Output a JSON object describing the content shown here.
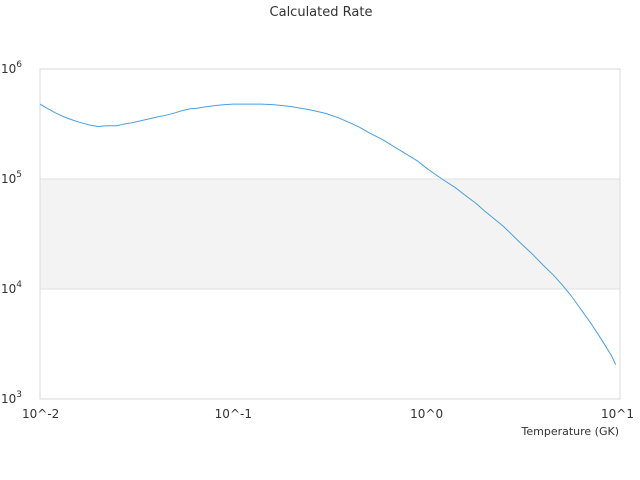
{
  "chart_data": {
    "type": "line",
    "title": "Calculated Rate",
    "xlabel": "Temperature (GK)",
    "ylabel": "",
    "xscale": "log",
    "yscale": "log",
    "xlim": [
      0.01,
      10
    ],
    "ylim": [
      1000,
      1000000
    ],
    "x_ticks": [
      {
        "value": 0.01,
        "base": "10^",
        "exp": "-2"
      },
      {
        "value": 0.1,
        "base": "10^",
        "exp": "-1"
      },
      {
        "value": 1,
        "base": "10^",
        "exp": "0"
      },
      {
        "value": 10,
        "base": "10^",
        "exp": "1"
      }
    ],
    "y_ticks": [
      {
        "value": 1000,
        "base": "10^",
        "exp": "3"
      },
      {
        "value": 10000,
        "base": "10^",
        "exp": "4"
      },
      {
        "value": 100000,
        "base": "10^",
        "exp": "5"
      },
      {
        "value": 1000000,
        "base": "10^",
        "exp": "6"
      }
    ],
    "bands": [
      {
        "from": 10000,
        "to": 100000,
        "color": "#f3f3f3"
      }
    ],
    "grid": true,
    "legend": "none",
    "series": [
      {
        "color": "#4a9fe0",
        "x": [
          0.01,
          0.011,
          0.012,
          0.013,
          0.014,
          0.015,
          0.016,
          0.017,
          0.018,
          0.02,
          0.022,
          0.025,
          0.027,
          0.03,
          0.035,
          0.04,
          0.045,
          0.05,
          0.055,
          0.06,
          0.065,
          0.07,
          0.08,
          0.09,
          0.1,
          0.12,
          0.14,
          0.16,
          0.18,
          0.2,
          0.25,
          0.3,
          0.35,
          0.4,
          0.45,
          0.5,
          0.6,
          0.7,
          0.8,
          0.9,
          1.0,
          1.2,
          1.4,
          1.6,
          1.8,
          2.0,
          2.5,
          3.0,
          3.5,
          4.0,
          4.5,
          5.0,
          5.5,
          6.0,
          6.5,
          7.0,
          8.0,
          9.0,
          9.5
        ],
        "y": [
          480000,
          435000,
          400000,
          375000,
          355000,
          340000,
          328000,
          318000,
          310000,
          300000,
          305000,
          305000,
          315000,
          325000,
          345000,
          365000,
          380000,
          400000,
          420000,
          435000,
          440000,
          450000,
          465000,
          475000,
          480000,
          480000,
          480000,
          475000,
          465000,
          455000,
          425000,
          395000,
          360000,
          325000,
          295000,
          265000,
          225000,
          190000,
          165000,
          145000,
          125000,
          100000,
          84000,
          70000,
          60000,
          51000,
          37000,
          27000,
          21000,
          16500,
          13500,
          11000,
          9000,
          7300,
          6000,
          5000,
          3500,
          2500,
          2050
        ]
      }
    ]
  }
}
